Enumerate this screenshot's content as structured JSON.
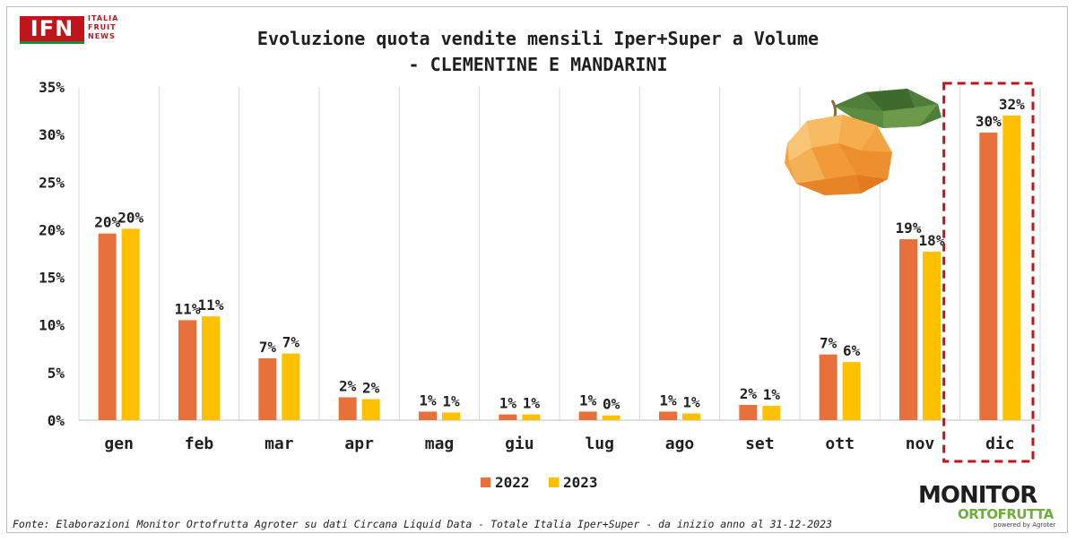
{
  "header": {
    "logo_text": "IFN",
    "logo_sub_lines": [
      "ITALIA",
      "FRUIT",
      "NEWS"
    ],
    "title_line1": "Evoluzione quota vendite mensili Iper+Super a Volume",
    "title_line2": "- CLEMENTINE E MANDARINI"
  },
  "chart_data": {
    "type": "bar",
    "title": "Evoluzione quota vendite mensili Iper+Super a Volume - CLEMENTINE E MANDARINI",
    "categories": [
      "gen",
      "feb",
      "mar",
      "apr",
      "mag",
      "giu",
      "lug",
      "ago",
      "set",
      "ott",
      "nov",
      "dic"
    ],
    "series": [
      {
        "name": "2022",
        "color": "#e8703a",
        "values": [
          19.6,
          10.5,
          6.5,
          2.4,
          0.9,
          0.6,
          0.9,
          0.9,
          1.6,
          6.9,
          19.0,
          30.2
        ],
        "labels": [
          "20%",
          "11%",
          "7%",
          "2%",
          "1%",
          "1%",
          "1%",
          "1%",
          "2%",
          "7%",
          "19%",
          "30%"
        ]
      },
      {
        "name": "2023",
        "color": "#ffc000",
        "values": [
          20.1,
          10.9,
          7.0,
          2.2,
          0.8,
          0.6,
          0.5,
          0.7,
          1.5,
          6.1,
          17.7,
          32.0
        ],
        "labels": [
          "20%",
          "11%",
          "7%",
          "2%",
          "1%",
          "1%",
          "0%",
          "1%",
          "1%",
          "6%",
          "18%",
          "32%"
        ]
      }
    ],
    "y_ticks": [
      "0%",
      "5%",
      "10%",
      "15%",
      "20%",
      "25%",
      "30%",
      "35%"
    ],
    "ylim": [
      0,
      35
    ],
    "grid": "vertical",
    "legend": "bottom-center",
    "highlight_category": "dic",
    "highlight_color": "#c0161b",
    "xlabel": "",
    "ylabel": ""
  },
  "footer": {
    "source": "Fonte: Elaborazioni Monitor Ortofrutta Agroter su dati Circana Liquid Data - Totale Italia Iper+Super -  da inizio anno al 31-12-2023"
  },
  "brand": {
    "monitor_top": "MONITOR",
    "monitor_bottom": "ORTOFRUTTA",
    "monitor_tiny": "powered by Agroter"
  }
}
